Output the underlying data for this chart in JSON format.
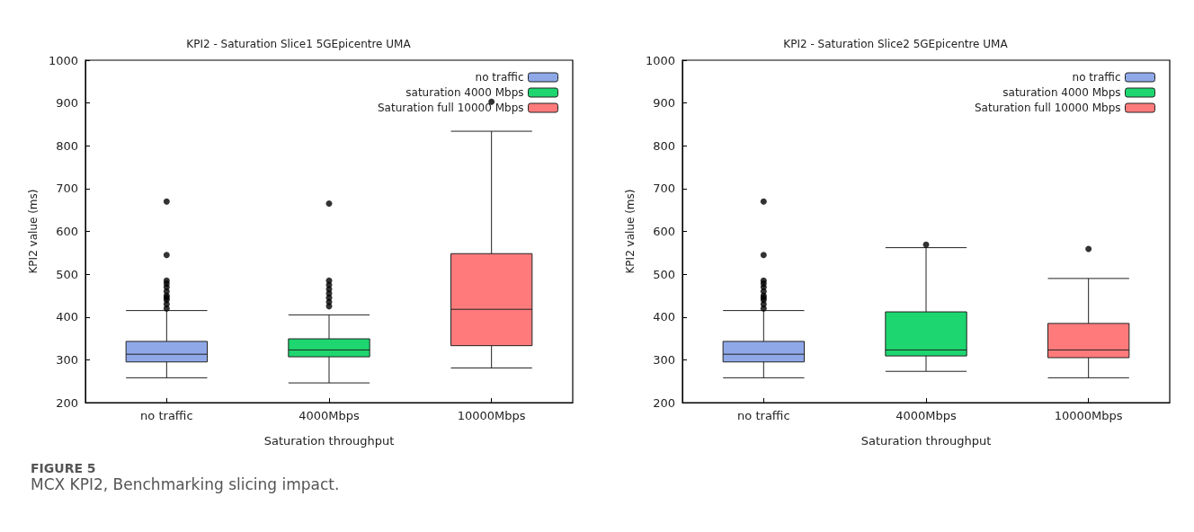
{
  "chart_data": [
    {
      "type": "box",
      "title": "KPI2 - Saturation Slice1 5GEpicentre UMA",
      "xlabel": "Saturation throughput",
      "ylabel": "KPI2 value (ms)",
      "categories": [
        "no traffic",
        "4000Mbps",
        "10000Mbps"
      ],
      "ylim": [
        200,
        1000
      ],
      "yticks": [
        200,
        300,
        400,
        500,
        600,
        700,
        800,
        900,
        1000
      ],
      "grid": false,
      "legend": "top right",
      "annotations": [
        "FIGURE 5",
        "MCX KPI2, Benchmarking slicing impact."
      ],
      "series": [
        {
          "name": "no traffic",
          "color": "#8fa8e8",
          "boxes": [
            {
              "low": 258,
              "q1": 295,
              "median": 313,
              "q3": 343,
              "high": 415,
              "outliers": [
                420,
                430,
                440,
                445,
                450,
                460,
                470,
                478,
                485,
                545,
                670
              ]
            },
            null,
            null
          ]
        },
        {
          "name": "saturation 4000 Mbps",
          "color": "#1ed66f",
          "boxes": [
            null,
            {
              "low": 246,
              "q1": 307,
              "median": 323,
              "q3": 349,
              "high": 405,
              "outliers": [
                425,
                435,
                445,
                455,
                465,
                475,
                485,
                665
              ]
            },
            null
          ]
        },
        {
          "name": "Saturation full 10000 Mbps",
          "color": "#ff7b7b",
          "boxes": [
            null,
            null,
            {
              "low": 281,
              "q1": 333,
              "median": 418,
              "q3": 548,
              "high": 834,
              "outliers": [
                903
              ]
            }
          ]
        }
      ]
    },
    {
      "type": "box",
      "title": "KPI2 - Saturation Slice2 5GEpicentre UMA",
      "xlabel": "Saturation throughput",
      "ylabel": "KPI2 value (ms)",
      "categories": [
        "no traffic",
        "4000Mbps",
        "10000Mbps"
      ],
      "ylim": [
        200,
        1000
      ],
      "yticks": [
        200,
        300,
        400,
        500,
        600,
        700,
        800,
        900,
        1000
      ],
      "grid": false,
      "legend": "top right",
      "series": [
        {
          "name": "no traffic",
          "color": "#8fa8e8",
          "boxes": [
            {
              "low": 258,
              "q1": 295,
              "median": 313,
              "q3": 343,
              "high": 415,
              "outliers": [
                420,
                430,
                440,
                445,
                450,
                460,
                470,
                478,
                485,
                545,
                670
              ]
            },
            null,
            null
          ]
        },
        {
          "name": "saturation 4000 Mbps",
          "color": "#1ed66f",
          "boxes": [
            null,
            {
              "low": 273,
              "q1": 309,
              "median": 323,
              "q3": 412,
              "high": 562,
              "outliers": [
                569
              ]
            },
            null
          ]
        },
        {
          "name": "Saturation full 10000 Mbps",
          "color": "#ff7b7b",
          "boxes": [
            null,
            null,
            {
              "low": 258,
              "q1": 305,
              "median": 323,
              "q3": 385,
              "high": 490,
              "outliers": [
                559
              ]
            }
          ]
        }
      ]
    }
  ]
}
